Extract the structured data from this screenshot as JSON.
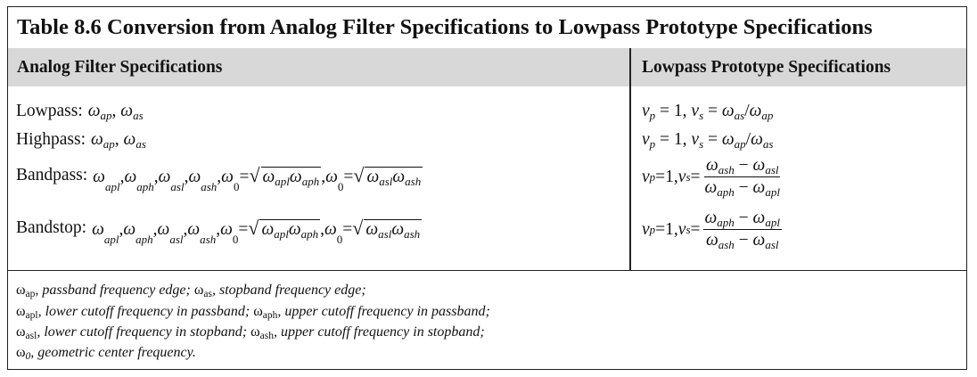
{
  "table": {
    "title": "Table 8.6  Conversion from Analog Filter Specifications to Lowpass Prototype Specifications",
    "headers": [
      "Analog Filter Specifications",
      "Lowpass Prototype Specifications"
    ],
    "rows": [
      {
        "label": "Lowpass:",
        "analog": "ωap, ωas",
        "prototype": "vp = 1, vs = ωas/ωap"
      },
      {
        "label": "Highpass:",
        "analog": "ωap, ωas",
        "prototype": "vp = 1, vs = ωap/ωas"
      },
      {
        "label": "Bandpass:",
        "analog": "ωapl, ωaph, ωasl, ωash, ω0 = √(ωaplωaph), ω0 = √(ωaslωash)",
        "prototype": "vp = 1, vs = (ωash − ωasl)/(ωaph − ωapl)"
      },
      {
        "label": "Bandstop:",
        "analog": "ωapl, ωaph, ωasl, ωash, ω0 = √(ωaplωaph), ω0 = √(ωaslωash)",
        "prototype": "vp = 1, vs = (ωaph − ωapl)/(ωash − ωasl)"
      }
    ],
    "footnotes": [
      "ωap, passband frequency edge; ωas, stopband frequency edge;",
      "ωapl, lower cutoff frequency in passband; ωaph, upper cutoff frequency in passband;",
      "ωasl, lower cutoff frequency in stopband; ωash, upper cutoff frequency in stopband;",
      "ω0, geometric center frequency."
    ]
  },
  "text": {
    "w": "ω",
    "eq": " = ",
    "comma": ", ",
    "one": "1",
    "v": "v",
    "minus": " − ",
    "slash": "/",
    "sqrt": "√",
    "sub": {
      "ap": "ap",
      "as": "as",
      "apl": "apl",
      "aph": "aph",
      "asl": "asl",
      "ash": "ash",
      "p": "p",
      "s": "s",
      "zero": "0"
    },
    "fn": {
      "ap": ", passband frequency edge; ",
      "as": ", stopband frequency edge;",
      "apl": ", lower cutoff frequency in passband; ",
      "aph": ", upper cutoff frequency in passband;",
      "asl": ", lower cutoff frequency in stopband; ",
      "ash": ", upper cutoff frequency in stopband;",
      "zero": ", geometric center frequency."
    }
  }
}
